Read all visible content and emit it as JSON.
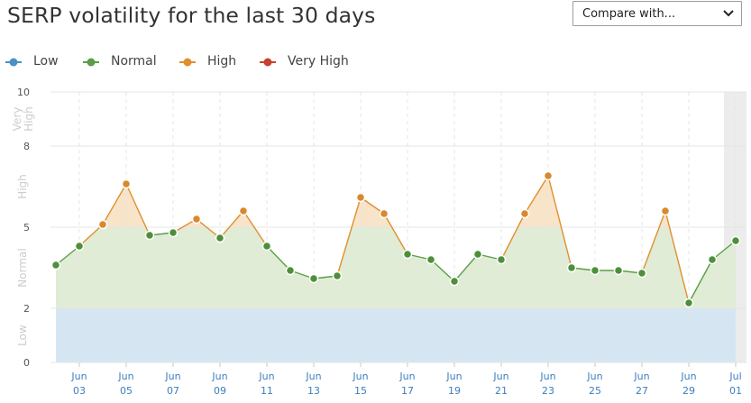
{
  "title": "SERP volatility for the last 30 days",
  "compare": {
    "label": "Compare with..."
  },
  "legend": [
    {
      "label": "Low",
      "color": "#4a90c4"
    },
    {
      "label": "Normal",
      "color": "#5b9e45"
    },
    {
      "label": "High",
      "color": "#e08f2e"
    },
    {
      "label": "Very High",
      "color": "#c8402f"
    }
  ],
  "colors": {
    "low_band": "#d5e6f2",
    "normal_area": "#e0ecd6",
    "high_area": "#f8e4c9",
    "normal_line": "#5b9e45",
    "normal_point": "#4e8f38",
    "high_line": "#e08f2e",
    "high_point": "#d9882c",
    "grid": "#e4e4e4",
    "axis_label": "#cccccc",
    "tick_label": "#3b7fbf",
    "highlight": "#ececec"
  },
  "chart_data": {
    "type": "area",
    "title": "SERP volatility for the last 30 days",
    "ylim": [
      0,
      10
    ],
    "yticks": [
      "0",
      "2",
      "5",
      "8",
      "10"
    ],
    "ytick_values": [
      0,
      2,
      5,
      8,
      10
    ],
    "bands": [
      {
        "label": "Low",
        "from": 0,
        "to": 2
      },
      {
        "label": "Normal",
        "from": 2,
        "to": 5
      },
      {
        "label": "High",
        "from": 5,
        "to": 8
      },
      {
        "label": "Very High",
        "from": 8,
        "to": 10
      }
    ],
    "xtick_labels": [
      {
        "top": "Jun",
        "bottom": "03"
      },
      {
        "top": "Jun",
        "bottom": "05"
      },
      {
        "top": "Jun",
        "bottom": "07"
      },
      {
        "top": "Jun",
        "bottom": "09"
      },
      {
        "top": "Jun",
        "bottom": "11"
      },
      {
        "top": "Jun",
        "bottom": "13"
      },
      {
        "top": "Jun",
        "bottom": "15"
      },
      {
        "top": "Jun",
        "bottom": "17"
      },
      {
        "top": "Jun",
        "bottom": "19"
      },
      {
        "top": "Jun",
        "bottom": "21"
      },
      {
        "top": "Jun",
        "bottom": "23"
      },
      {
        "top": "Jun",
        "bottom": "25"
      },
      {
        "top": "Jun",
        "bottom": "27"
      },
      {
        "top": "Jun",
        "bottom": "29"
      },
      {
        "top": "Jul",
        "bottom": "01"
      }
    ],
    "x": [
      "Jun 02",
      "Jun 03",
      "Jun 04",
      "Jun 05",
      "Jun 06",
      "Jun 07",
      "Jun 08",
      "Jun 09",
      "Jun 10",
      "Jun 11",
      "Jun 12",
      "Jun 13",
      "Jun 14",
      "Jun 15",
      "Jun 16",
      "Jun 17",
      "Jun 18",
      "Jun 19",
      "Jun 20",
      "Jun 21",
      "Jun 22",
      "Jun 23",
      "Jun 24",
      "Jun 25",
      "Jun 26",
      "Jun 27",
      "Jun 28",
      "Jun 29",
      "Jun 30",
      "Jul 01"
    ],
    "values": [
      3.6,
      4.3,
      5.1,
      6.6,
      4.7,
      4.8,
      5.3,
      4.6,
      5.6,
      4.3,
      3.4,
      3.1,
      3.2,
      6.1,
      5.5,
      4.0,
      3.8,
      3.0,
      4.0,
      3.8,
      5.5,
      6.9,
      3.5,
      3.4,
      3.4,
      3.3,
      5.6,
      2.2,
      3.8,
      4.5
    ],
    "highlight_last": true
  }
}
